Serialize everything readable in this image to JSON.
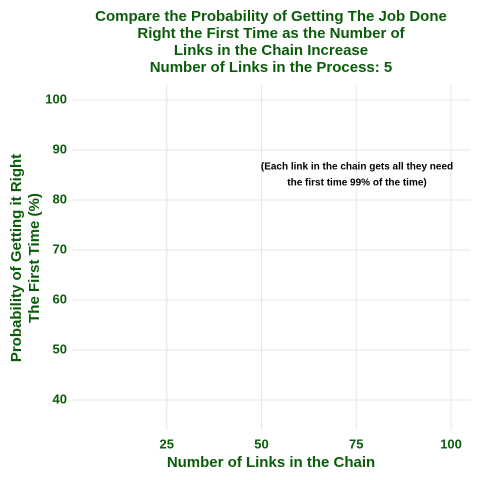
{
  "chart_data": {
    "type": "line",
    "title": [
      "Compare the Probability of Getting The Job Done",
      "Right the First Time as the Number of",
      "Links in the Chain Increase",
      "Number of Links in the Process:  5"
    ],
    "x_label": "Number of Links in the Chain",
    "y_label": [
      "Probability of Getting it Right",
      "The First Time (%)"
    ],
    "annotation": [
      "(Each link in the chain gets all they need",
      "the first time 99% of the time)"
    ],
    "xlim": [
      0,
      105
    ],
    "xticks": [
      25,
      50,
      75,
      100
    ],
    "ylim": [
      34,
      103
    ],
    "yticks": [
      40,
      50,
      60,
      70,
      80,
      90,
      100
    ],
    "grid": true
  }
}
